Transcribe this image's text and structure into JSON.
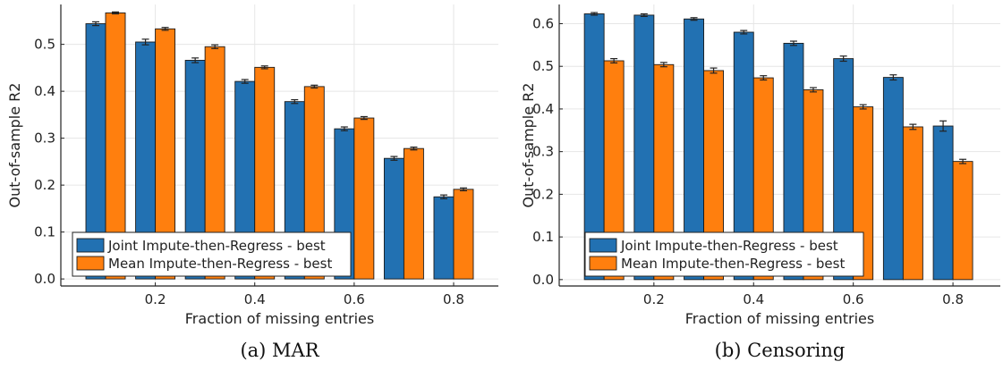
{
  "colors": {
    "joint": "#2271b2",
    "mean": "#ff7f0e",
    "axis": "#222222",
    "grid": "#e6e6e6",
    "errorbar": "#222222"
  },
  "legend": {
    "joint_label": "Joint Impute-then-Regress - best",
    "mean_label": "Mean Impute-then-Regress - best"
  },
  "chart_data": [
    {
      "type": "bar",
      "panel": "a",
      "caption": "(a) MAR",
      "xlabel": "Fraction of missing entries",
      "ylabel": "Out-of-sample R2",
      "x": [
        0.1,
        0.2,
        0.3,
        0.4,
        0.5,
        0.6,
        0.7,
        0.8
      ],
      "xticks": [
        "0.2",
        "0.4",
        "0.6",
        "0.8"
      ],
      "xtick_values": [
        0.2,
        0.4,
        0.6,
        0.8
      ],
      "xlim": [
        0.01,
        0.89
      ],
      "ylim": [
        -0.015,
        0.585
      ],
      "yticks": [
        "0.0",
        "0.1",
        "0.2",
        "0.3",
        "0.4",
        "0.5"
      ],
      "ytick_values": [
        0.0,
        0.1,
        0.2,
        0.3,
        0.4,
        0.5
      ],
      "grid": true,
      "legend_position": "bottom-left",
      "series": [
        {
          "name": "Joint Impute-then-Regress - best",
          "values": [
            0.544,
            0.505,
            0.466,
            0.421,
            0.378,
            0.32,
            0.257,
            0.175
          ],
          "errors": [
            0.004,
            0.006,
            0.005,
            0.004,
            0.004,
            0.004,
            0.004,
            0.004
          ]
        },
        {
          "name": "Mean Impute-then-Regress - best",
          "values": [
            0.567,
            0.533,
            0.495,
            0.451,
            0.41,
            0.343,
            0.278,
            0.191
          ],
          "errors": [
            0.002,
            0.003,
            0.004,
            0.003,
            0.003,
            0.003,
            0.003,
            0.003
          ]
        }
      ]
    },
    {
      "type": "bar",
      "panel": "b",
      "caption": "(b) Censoring",
      "xlabel": "Fraction of missing entries",
      "ylabel": "Out-of-sample R2",
      "x": [
        0.1,
        0.2,
        0.3,
        0.4,
        0.5,
        0.6,
        0.7,
        0.8
      ],
      "xticks": [
        "0.2",
        "0.4",
        "0.6",
        "0.8"
      ],
      "xtick_values": [
        0.2,
        0.4,
        0.6,
        0.8
      ],
      "xlim": [
        0.01,
        0.895
      ],
      "ylim": [
        -0.015,
        0.645
      ],
      "yticks": [
        "0.0",
        "0.1",
        "0.2",
        "0.3",
        "0.4",
        "0.5",
        "0.6"
      ],
      "ytick_values": [
        0.0,
        0.1,
        0.2,
        0.3,
        0.4,
        0.5,
        0.6
      ],
      "grid": true,
      "legend_position": "bottom-left",
      "series": [
        {
          "name": "Joint Impute-then-Regress - best",
          "values": [
            0.623,
            0.62,
            0.611,
            0.58,
            0.554,
            0.518,
            0.474,
            0.36
          ],
          "errors": [
            0.003,
            0.003,
            0.003,
            0.004,
            0.005,
            0.006,
            0.006,
            0.012
          ]
        },
        {
          "name": "Mean Impute-then-Regress - best",
          "values": [
            0.513,
            0.504,
            0.49,
            0.473,
            0.445,
            0.405,
            0.358,
            0.277
          ],
          "errors": [
            0.005,
            0.005,
            0.006,
            0.005,
            0.005,
            0.005,
            0.006,
            0.005
          ]
        }
      ]
    }
  ]
}
